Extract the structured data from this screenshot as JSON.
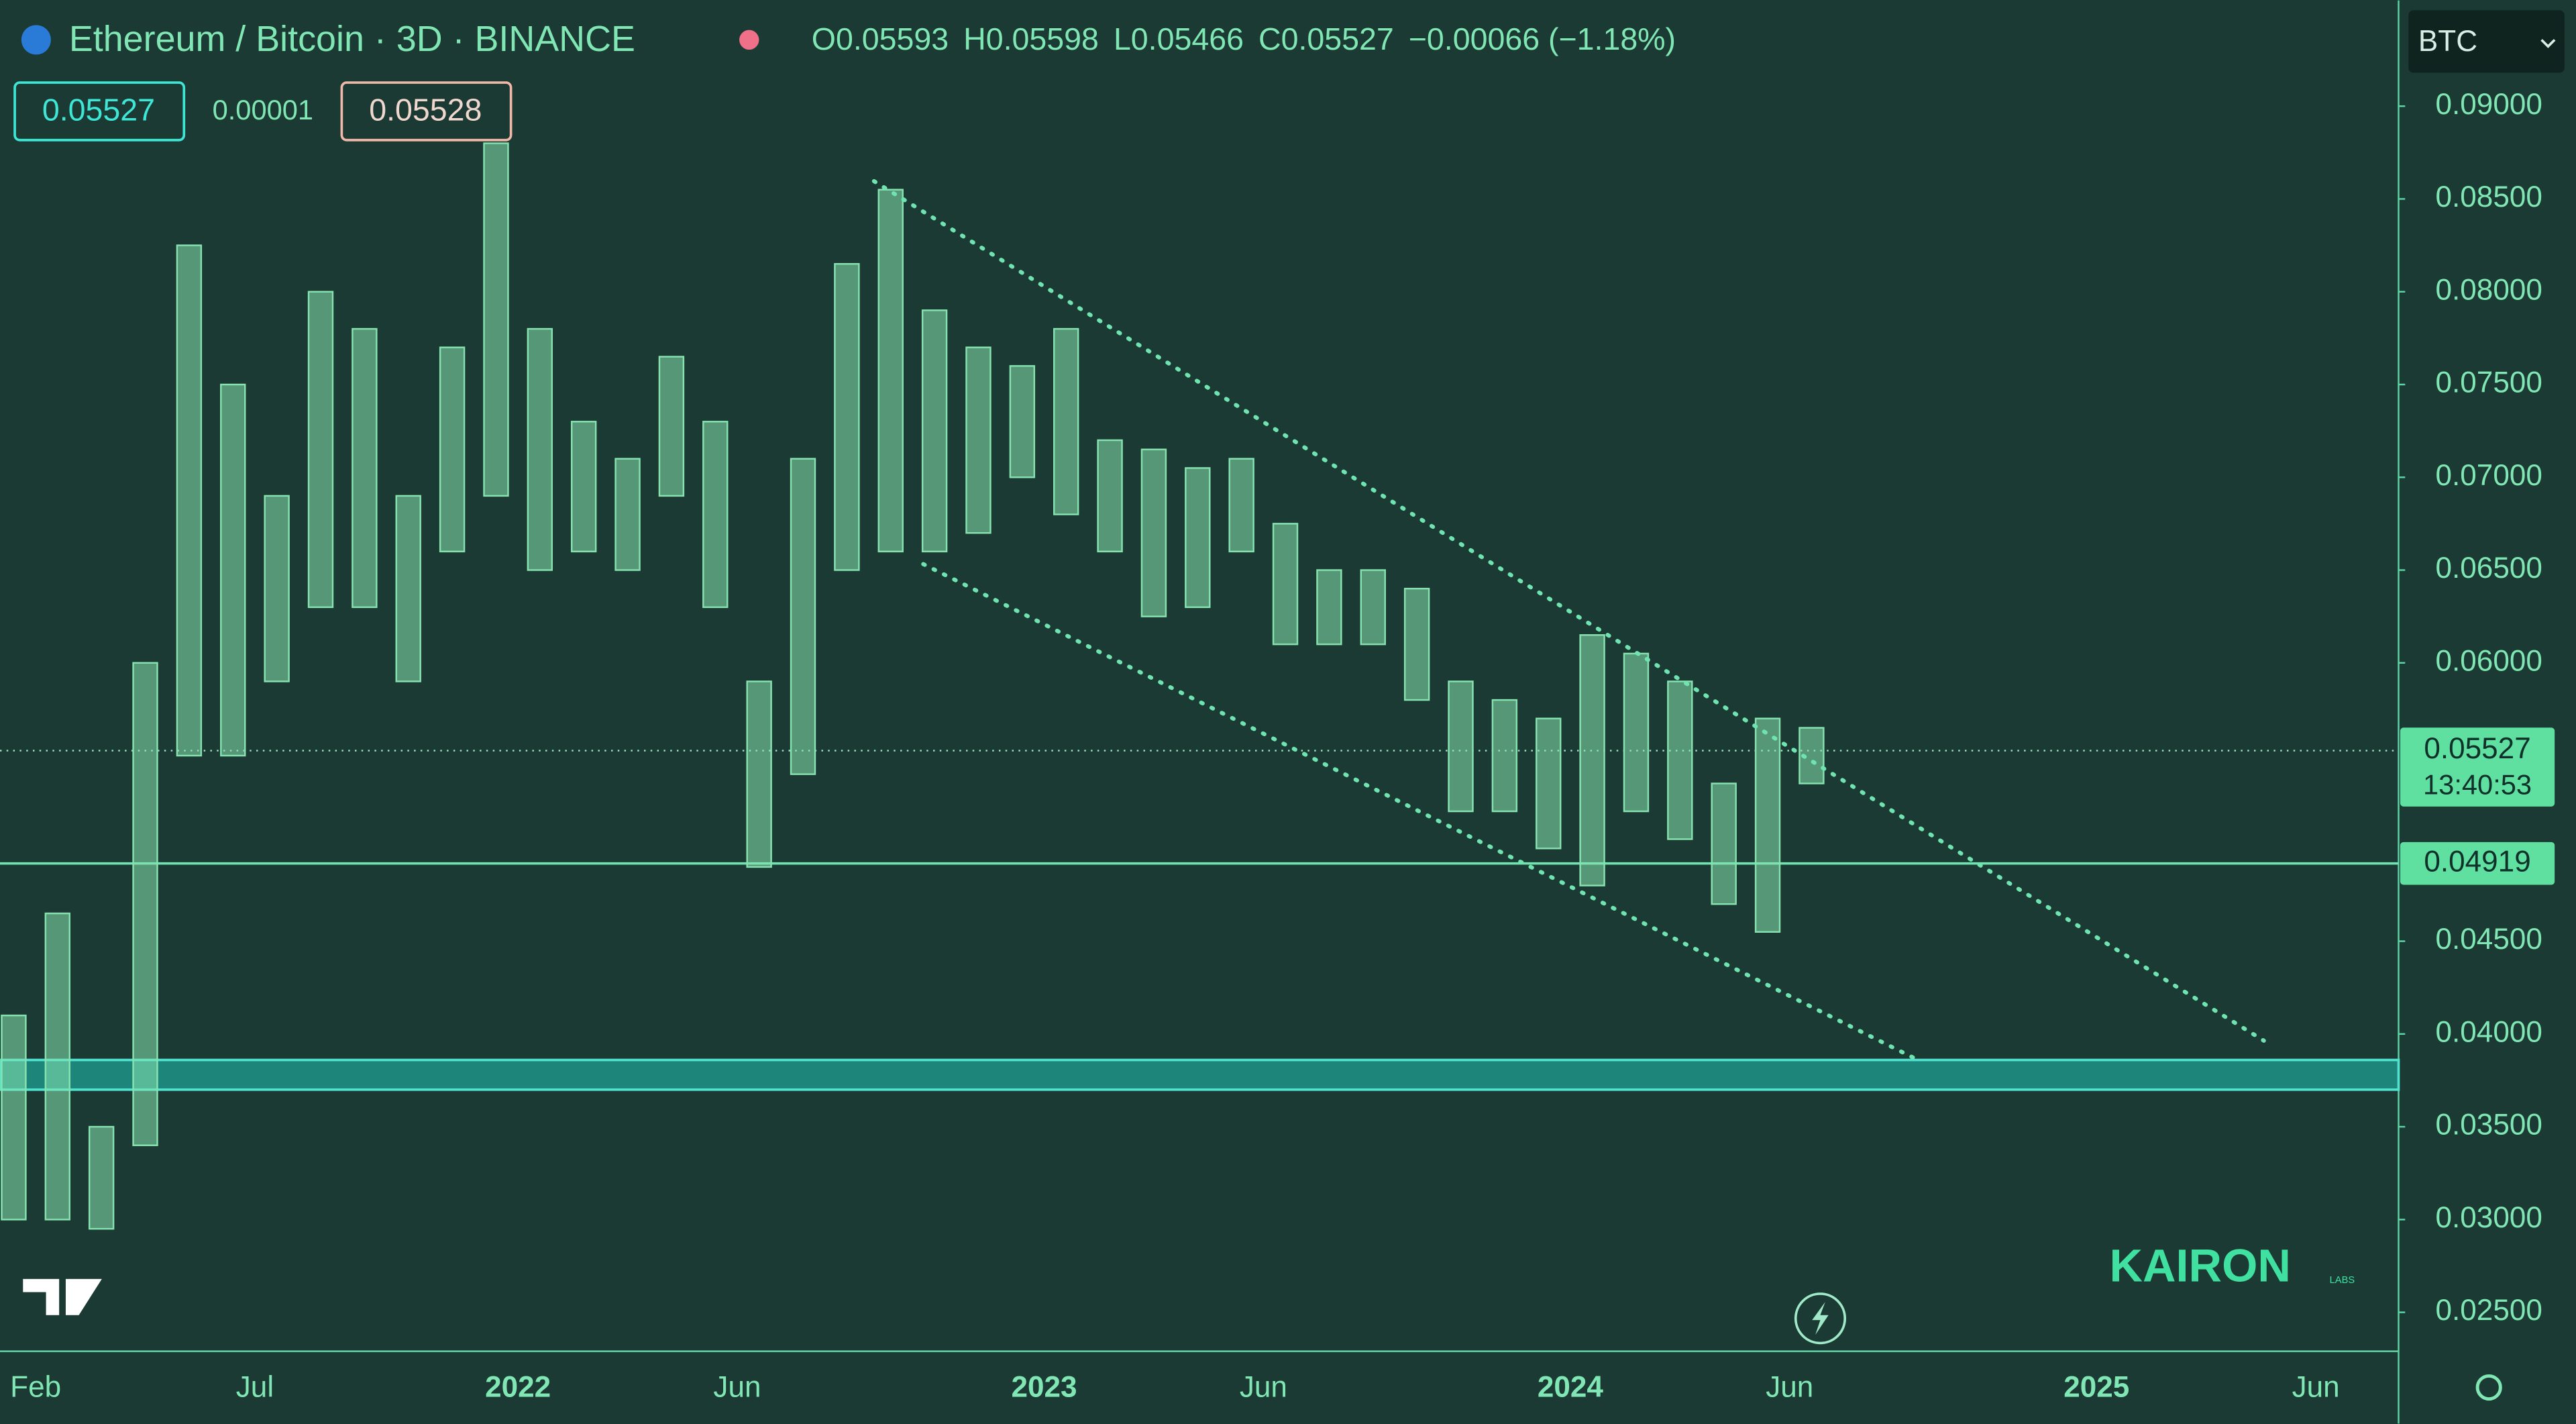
{
  "chart_data": {
    "type": "range-bar",
    "title": "Ethereum / Bitcoin · 3D · BINANCE",
    "ohlc_text": [
      "O0.05593",
      "H0.05598",
      "L0.05466",
      "C0.05527",
      "−0.00066 (−1.18%)"
    ],
    "price_boxes": [
      "0.05527",
      "0.00001",
      "0.05528"
    ],
    "currency": "BTC",
    "last_price": {
      "value": 0.05527,
      "label": "0.05527"
    },
    "countdown": "13:40:53",
    "level": {
      "value": 0.04919,
      "label": "0.04919"
    },
    "zone": [
      0.037,
      0.0386
    ],
    "logo": "KAIRON",
    "logo_sub": "LABS",
    "categories": [
      null,
      "Feb",
      null,
      null,
      null,
      null,
      "Jul",
      null,
      null,
      null,
      null,
      null,
      "2022",
      null,
      null,
      null,
      null,
      "Jun",
      null,
      null,
      null,
      null,
      null,
      null,
      "2023",
      null,
      null,
      null,
      null,
      "Jun",
      null,
      null,
      null,
      null,
      null,
      null,
      "2024",
      null,
      null,
      null,
      null,
      "Jun",
      null,
      null,
      null,
      null,
      null,
      null,
      "2025",
      null,
      null,
      null,
      null,
      "Jun",
      null
    ],
    "high": [
      0.041,
      0.0465,
      0.035,
      0.06,
      0.0825,
      0.075,
      0.069,
      0.08,
      0.078,
      0.069,
      0.077,
      0.088,
      0.078,
      0.073,
      0.071,
      0.0765,
      0.073,
      0.059,
      0.071,
      0.0815,
      0.0855,
      0.079,
      0.077,
      0.076,
      0.078,
      0.072,
      0.0715,
      0.0705,
      0.071,
      0.0675,
      0.065,
      0.065,
      0.064,
      0.059,
      0.058,
      0.057,
      0.0615,
      0.0605,
      0.059,
      0.0535,
      0.057,
      0.0565,
      null,
      null,
      null,
      null,
      null,
      null,
      null,
      null,
      null,
      null,
      null,
      null,
      null
    ],
    "low": [
      0.03,
      0.03,
      0.0295,
      0.034,
      0.055,
      0.055,
      0.059,
      0.063,
      0.063,
      0.059,
      0.066,
      0.069,
      0.065,
      0.066,
      0.065,
      0.069,
      0.063,
      0.049,
      0.054,
      0.065,
      0.066,
      0.066,
      0.067,
      0.07,
      0.068,
      0.066,
      0.0625,
      0.063,
      0.066,
      0.061,
      0.061,
      0.061,
      0.058,
      0.052,
      0.052,
      0.05,
      0.048,
      0.052,
      0.0505,
      0.047,
      0.0455,
      0.0535,
      null,
      null,
      null,
      null,
      null,
      null,
      null,
      null,
      null,
      null,
      null,
      null,
      null
    ],
    "color": "#86e3b0",
    "ylim": [
      0.0229,
      0.0957
    ],
    "yticks": [
      {
        "value": 0.09,
        "label": "0.09000"
      },
      {
        "value": 0.085,
        "label": "0.08500"
      },
      {
        "value": 0.08,
        "label": "0.08000"
      },
      {
        "value": 0.075,
        "label": "0.07500"
      },
      {
        "value": 0.07,
        "label": "0.07000"
      },
      {
        "value": 0.065,
        "label": "0.06500"
      },
      {
        "value": 0.06,
        "label": "0.06000"
      },
      {
        "value": 0.045,
        "label": "0.04500"
      },
      {
        "value": 0.04,
        "label": "0.04000"
      },
      {
        "value": 0.035,
        "label": "0.03500"
      },
      {
        "value": 0.03,
        "label": "0.03000"
      },
      {
        "value": 0.025,
        "label": "0.02500"
      }
    ]
  }
}
